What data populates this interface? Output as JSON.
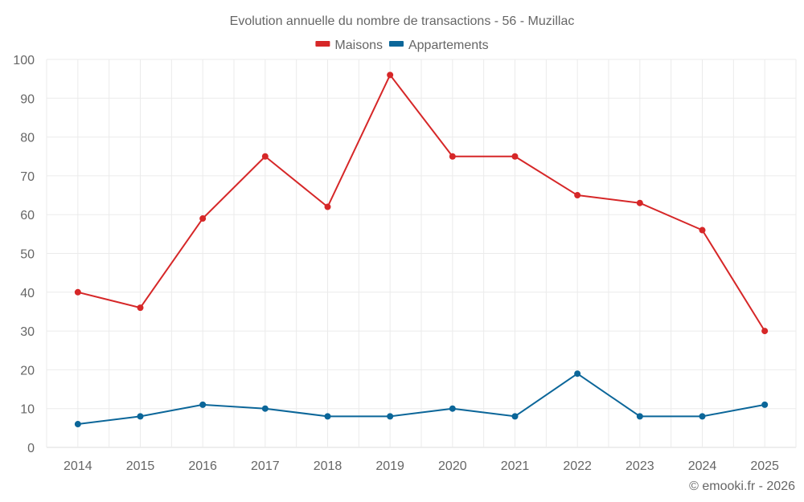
{
  "chart_data": {
    "type": "line",
    "title": "Evolution annuelle du nombre de transactions - 56 - Muzillac",
    "xlabel": "",
    "ylabel": "",
    "x": [
      "2014",
      "2015",
      "2016",
      "2017",
      "2018",
      "2019",
      "2020",
      "2021",
      "2022",
      "2023",
      "2024",
      "2025"
    ],
    "series": [
      {
        "name": "Maisons",
        "color": "#d62728",
        "values": [
          40,
          36,
          59,
          75,
          62,
          96,
          75,
          75,
          65,
          63,
          56,
          30
        ]
      },
      {
        "name": "Appartements",
        "color": "#0b6699",
        "values": [
          6,
          8,
          11,
          10,
          8,
          8,
          10,
          8,
          19,
          8,
          8,
          11
        ]
      }
    ],
    "ylim": [
      0,
      100
    ],
    "yticks": [
      0,
      10,
      20,
      30,
      40,
      50,
      60,
      70,
      80,
      90,
      100
    ],
    "grid": true,
    "legend": "top-center"
  },
  "footer": "© emooki.fr - 2026"
}
